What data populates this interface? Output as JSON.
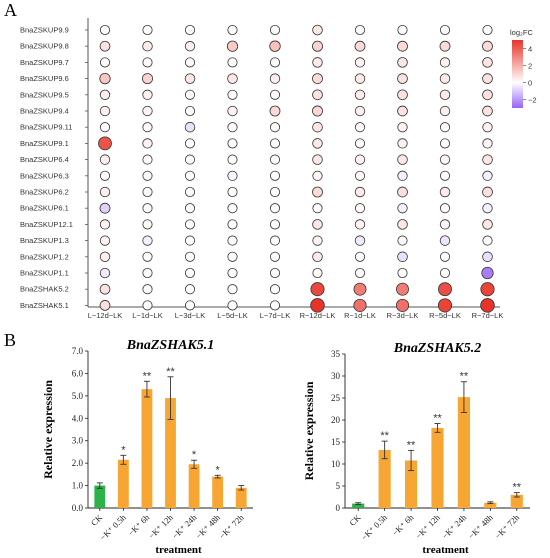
{
  "panel_a_letter": "A",
  "panel_b_letter": "B",
  "chart_data": [
    {
      "type": "heatmap",
      "legend_title": "log₂FC",
      "legend_ticks": [
        4,
        2,
        0,
        -2
      ],
      "legend_range": [
        -3,
        5
      ],
      "columns": [
        "L−12d−LK",
        "L−1d−LK",
        "L−3d−LK",
        "L−5d−LK",
        "L−7d−LK",
        "R−12d−LK",
        "R−1d−LK",
        "R−3d−LK",
        "R−5d−LK",
        "R−7d−LK"
      ],
      "rows": [
        "BnaZSKUP9.9",
        "BnaZSKUP9.8",
        "BnaZSKUP9.7",
        "BnaZSKUP9.6",
        "BnaZSKUP9.5",
        "BnaZSKUP9.4",
        "BnaZSKUP9.11",
        "BnaZSKUP9.1",
        "BnaZSKUP6.4",
        "BnaZSKUP6.3",
        "BnaZSKUP6.2",
        "BnaZSKUP6.1",
        "BnaZSKUP12.1",
        "BnaZSKUP1.3",
        "BnaZSKUP1.2",
        "BnaZSKUP1.1",
        "BnaZSHAK5.2",
        "BnaZSHAK5.1"
      ],
      "values": [
        [
          0.1,
          0.1,
          0.1,
          0.1,
          0.1,
          0.6,
          0.1,
          0.1,
          0.1,
          0.1
        ],
        [
          0.7,
          0.5,
          0.4,
          1.3,
          1.5,
          1.1,
          0.9,
          0.9,
          0.9,
          0.9
        ],
        [
          0.1,
          0.1,
          0.1,
          0.1,
          0.1,
          0.5,
          0.3,
          0.6,
          0.3,
          0.6
        ],
        [
          1.4,
          1.1,
          0.6,
          0.6,
          0.4,
          0.9,
          0.5,
          0.7,
          0.5,
          0.7
        ],
        [
          0.4,
          0.3,
          0.1,
          0.1,
          0.1,
          0.7,
          0.5,
          0.7,
          0.5,
          0.7
        ],
        [
          0.4,
          0.3,
          0.1,
          0.3,
          0.9,
          1.0,
          0.4,
          0.7,
          0.4,
          0.7
        ],
        [
          0.1,
          0.1,
          -0.6,
          0.1,
          0.1,
          0.6,
          0.1,
          0.3,
          0.1,
          0.3
        ],
        [
          4.2,
          0.3,
          0.1,
          0.1,
          0.1,
          0.5,
          0.1,
          0.3,
          0.1,
          0.3
        ],
        [
          0.4,
          0.1,
          0.1,
          0.1,
          0.1,
          0.6,
          0.3,
          0.6,
          0.3,
          0.6
        ],
        [
          0.1,
          0.1,
          0.1,
          -0.2,
          0.1,
          0.2,
          0.1,
          -0.3,
          0.1,
          -0.3
        ],
        [
          0.4,
          0.1,
          0.1,
          0.1,
          0.1,
          0.9,
          0.5,
          0.8,
          0.5,
          0.8
        ],
        [
          -0.9,
          0.1,
          0.1,
          0.1,
          0.1,
          0.1,
          0.1,
          -0.3,
          0.1,
          -0.3
        ],
        [
          0.3,
          0.1,
          0.1,
          0.1,
          0.1,
          0.6,
          0.3,
          0.6,
          0.3,
          0.6
        ],
        [
          0.3,
          -0.3,
          0.1,
          0.1,
          0.1,
          0.3,
          -0.4,
          0.1,
          -0.5,
          0.1
        ],
        [
          0.4,
          0.1,
          0.1,
          0.1,
          0.1,
          0.5,
          0.1,
          -0.6,
          0.1,
          -0.6
        ],
        [
          -0.4,
          0.1,
          0.1,
          0.1,
          0.1,
          0.1,
          0.1,
          0.1,
          0.1,
          -2.5
        ],
        [
          0.7,
          0.1,
          0.1,
          0.1,
          0.1,
          4.5,
          3.2,
          3.2,
          4.3,
          4.6
        ],
        [
          0.8,
          0.1,
          0.1,
          0.1,
          0.1,
          5.0,
          3.5,
          3.5,
          4.6,
          5.0
        ]
      ]
    },
    {
      "type": "bar",
      "title": "BnaZSHAK5.1",
      "xlabel": "treatment",
      "ylabel": "Relative expression",
      "ylim": [
        0,
        7
      ],
      "yticks": [
        "0.0",
        "1.0",
        "2.0",
        "3.0",
        "4.0",
        "5.0",
        "6.0",
        "7.0"
      ],
      "categories": [
        "CK",
        "−K⁺ 0.5h",
        "−K⁺ 6h",
        "−K⁺ 12h",
        "−K⁺ 24h",
        "−K⁺ 48h",
        "−K⁺ 72h"
      ],
      "values": [
        1.0,
        2.15,
        5.3,
        4.9,
        1.95,
        1.4,
        0.9
      ],
      "errors": [
        0.12,
        0.2,
        0.35,
        0.95,
        0.18,
        0.06,
        0.1
      ],
      "significance": [
        "",
        "*",
        "**",
        "**",
        "*",
        "*",
        ""
      ],
      "colors": [
        "#2db24a",
        "#f7a533",
        "#f7a533",
        "#f7a533",
        "#f7a533",
        "#f7a533",
        "#f7a533"
      ]
    },
    {
      "type": "bar",
      "title": "BnaZSHAK5.2",
      "xlabel": "treatment",
      "ylabel": "Relative expression",
      "ylim": [
        0,
        35
      ],
      "yticks": [
        "0",
        "5",
        "10",
        "15",
        "20",
        "25",
        "30",
        "35"
      ],
      "categories": [
        "CK",
        "−K⁺ 0.5h",
        "−K⁺ 6h",
        "−K⁺ 12h",
        "−K⁺ 24h",
        "−K⁺ 48h",
        "−K⁺ 72h"
      ],
      "values": [
        1.0,
        13.2,
        10.8,
        18.2,
        25.2,
        1.2,
        3.0
      ],
      "errors": [
        0.2,
        2.0,
        2.3,
        1.0,
        3.5,
        0.2,
        0.5
      ],
      "significance": [
        "",
        "**",
        "**",
        "**",
        "**",
        "",
        "**"
      ],
      "colors": [
        "#2db24a",
        "#f7a533",
        "#f7a533",
        "#f7a533",
        "#f7a533",
        "#f7a533",
        "#f7a533"
      ]
    }
  ]
}
